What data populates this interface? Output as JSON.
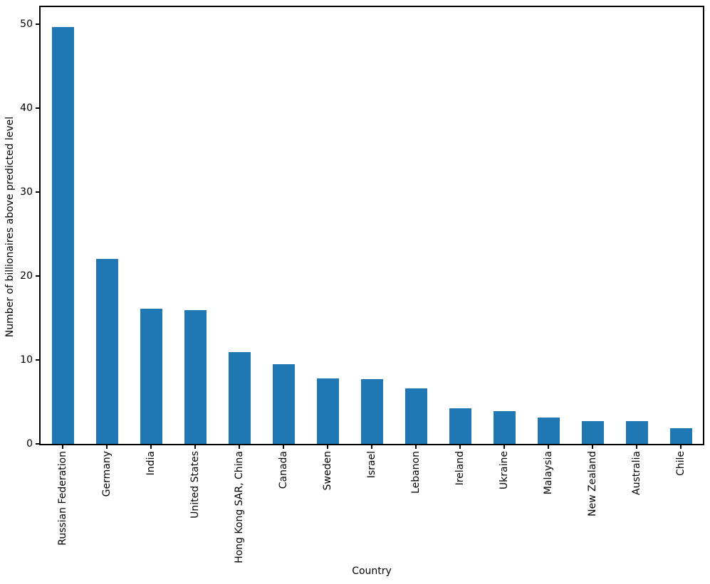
{
  "chart_data": {
    "type": "bar",
    "title": "",
    "xlabel": "Country",
    "ylabel": "Number of billionaires above predicted level",
    "categories": [
      "Russian Federation",
      "Germany",
      "India",
      "United States",
      "Hong Kong SAR, China",
      "Canada",
      "Sweden",
      "Israel",
      "Lebanon",
      "Ireland",
      "Ukraine",
      "Malaysia",
      "New Zealand",
      "Australia",
      "Chile"
    ],
    "values": [
      49.6,
      22.0,
      16.1,
      15.9,
      10.9,
      9.5,
      7.8,
      7.7,
      6.6,
      4.2,
      3.9,
      3.1,
      2.7,
      2.7,
      1.9
    ],
    "yticks": [
      0,
      10,
      20,
      30,
      40,
      50
    ],
    "ylim": [
      0,
      52
    ],
    "xlim_categories": [
      -0.5,
      14.5
    ],
    "bar_color": "#1f77b4",
    "axis_color": "#000000",
    "background_color": "#ffffff",
    "grid": false,
    "legend_position": "none",
    "bar_width_fraction": 0.5,
    "x_tick_rotation_deg": 90
  }
}
